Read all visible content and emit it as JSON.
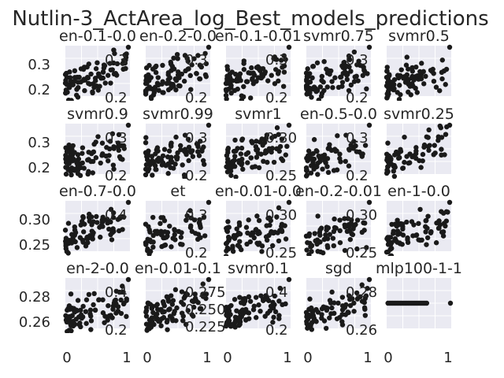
{
  "figure": {
    "suptitle": "Nutlin-3_ActArea_log_Best_models_predictions"
  },
  "chart_data": [
    {
      "type": "scatter",
      "title": "en-0.1-0.0",
      "yticks": [
        "0.3",
        "0.2"
      ],
      "inner_ticks": [
        "0.3",
        "0.2"
      ],
      "x_ticks": [],
      "ylim": [
        0.17,
        0.37
      ],
      "trend": 0.7,
      "flat": false,
      "n": 90
    },
    {
      "type": "scatter",
      "title": "en-0.2-0.0",
      "yticks": [],
      "inner_ticks": [
        "0.3",
        "0.2"
      ],
      "x_ticks": [],
      "ylim": [
        0.17,
        0.37
      ],
      "trend": 0.7,
      "flat": false,
      "n": 90
    },
    {
      "type": "scatter",
      "title": "en-0.1-0.01",
      "yticks": [],
      "inner_ticks": [
        "0.3",
        "0.2"
      ],
      "x_ticks": [],
      "ylim": [
        0.17,
        0.37
      ],
      "trend": 0.6,
      "flat": false,
      "n": 90
    },
    {
      "type": "scatter",
      "title": "svmr0.75",
      "yticks": [],
      "inner_ticks": [
        "0.3",
        "0.2"
      ],
      "x_ticks": [],
      "ylim": [
        0.17,
        0.37
      ],
      "trend": 0.5,
      "flat": false,
      "n": 90
    },
    {
      "type": "scatter",
      "title": "svmr0.5",
      "yticks": [],
      "inner_ticks": [],
      "x_ticks": [],
      "ylim": [
        0.17,
        0.37
      ],
      "trend": 0.6,
      "flat": false,
      "n": 90
    },
    {
      "type": "scatter",
      "title": "svmr0.9",
      "yticks": [
        "0.3",
        "0.2"
      ],
      "inner_ticks": [
        "0.3",
        "0.2"
      ],
      "x_ticks": [],
      "ylim": [
        0.17,
        0.37
      ],
      "trend": 0.5,
      "flat": false,
      "n": 90
    },
    {
      "type": "scatter",
      "title": "svmr0.99",
      "yticks": [],
      "inner_ticks": [
        "0.3",
        "0.2"
      ],
      "x_ticks": [],
      "ylim": [
        0.17,
        0.37
      ],
      "trend": 0.5,
      "flat": false,
      "n": 90
    },
    {
      "type": "scatter",
      "title": "svmr1",
      "yticks": [],
      "inner_ticks": [
        "0.30",
        "0.25"
      ],
      "x_ticks": [],
      "ylim": [
        0.2,
        0.33
      ],
      "trend": 0.6,
      "flat": false,
      "n": 90
    },
    {
      "type": "scatter",
      "title": "en-0.5-0.0",
      "yticks": [],
      "inner_ticks": [
        "0.3",
        "0.2"
      ],
      "x_ticks": [],
      "ylim": [
        0.17,
        0.33
      ],
      "trend": 0.7,
      "flat": false,
      "n": 70
    },
    {
      "type": "scatter",
      "title": "svmr0.25",
      "yticks": [],
      "inner_ticks": [],
      "x_ticks": [],
      "ylim": [
        0.17,
        0.37
      ],
      "trend": 0.7,
      "flat": false,
      "n": 70
    },
    {
      "type": "scatter",
      "title": "en-0.7-0.0",
      "yticks": [
        "0.30",
        "0.25"
      ],
      "inner_ticks": [
        "0.4"
      ],
      "x_ticks": [],
      "ylim": [
        0.23,
        0.32
      ],
      "trend": 0.7,
      "flat": false,
      "n": 90
    },
    {
      "type": "scatter",
      "title": "et",
      "yticks": [],
      "inner_ticks": [
        "0.3",
        "0.2"
      ],
      "x_ticks": [],
      "ylim": [
        0.17,
        0.37
      ],
      "trend": 0.5,
      "flat": false,
      "n": 70
    },
    {
      "type": "scatter",
      "title": "en-0.01-0.0",
      "yticks": [],
      "inner_ticks": [
        "0.30",
        "0.25"
      ],
      "x_ticks": [],
      "ylim": [
        0.23,
        0.32
      ],
      "trend": 0.5,
      "flat": false,
      "n": 80
    },
    {
      "type": "scatter",
      "title": "en-0.2-0.01",
      "yticks": [],
      "inner_ticks": [
        "0.30",
        "0.25"
      ],
      "x_ticks": [],
      "ylim": [
        0.23,
        0.32
      ],
      "trend": 0.5,
      "flat": false,
      "n": 70
    },
    {
      "type": "scatter",
      "title": "en-1-0.0",
      "yticks": [],
      "inner_ticks": [],
      "x_ticks": [],
      "ylim": [
        0.17,
        0.37
      ],
      "trend": 0.7,
      "flat": false,
      "n": 80
    },
    {
      "type": "scatter",
      "title": "en-2-0.0",
      "yticks": [
        "0.28",
        "0.26"
      ],
      "inner_ticks": [
        "0.4",
        "0.2"
      ],
      "x_ticks": [
        "0",
        "1"
      ],
      "ylim": [
        0.25,
        0.29
      ],
      "trend": 0.6,
      "flat": false,
      "n": 90
    },
    {
      "type": "scatter",
      "title": "en-0.01-0.1",
      "yticks": [],
      "inner_ticks": [
        "0.275",
        "0.250",
        "0.225"
      ],
      "x_ticks": [
        "0",
        "1"
      ],
      "ylim": [
        0.21,
        0.29
      ],
      "trend": 0.6,
      "flat": false,
      "n": 90
    },
    {
      "type": "scatter",
      "title": "svmr0.1",
      "yticks": [],
      "inner_ticks": [
        "0.4",
        "0.2"
      ],
      "x_ticks": [
        "0",
        "1"
      ],
      "ylim": [
        0.15,
        0.45
      ],
      "trend": 0.5,
      "flat": false,
      "n": 90
    },
    {
      "type": "scatter",
      "title": "sgd",
      "yticks": [],
      "inner_ticks": [
        "0.28",
        "0.26"
      ],
      "x_ticks": [
        "0",
        "1"
      ],
      "ylim": [
        0.25,
        0.29
      ],
      "trend": 0.6,
      "flat": false,
      "n": 80
    },
    {
      "type": "scatter",
      "title": "mlp100-1-1",
      "yticks": [],
      "inner_ticks": [],
      "x_ticks": [
        "0",
        "1"
      ],
      "ylim": [
        0,
        1
      ],
      "trend": 0,
      "flat": true,
      "n": 26
    }
  ]
}
